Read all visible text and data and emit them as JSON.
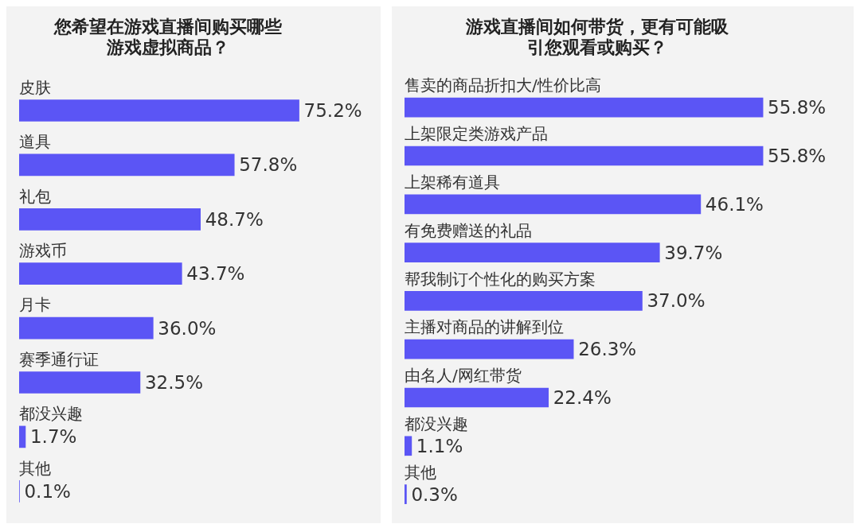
{
  "chart_data": [
    {
      "type": "bar",
      "orientation": "horizontal",
      "title": "您希望在游戏直播间购买哪些游戏虚拟商品？",
      "categories": [
        "皮肤",
        "道具",
        "礼包",
        "游戏币",
        "月卡",
        "赛季通行证",
        "都没兴趣",
        "其他"
      ],
      "values": [
        75.2,
        57.8,
        48.7,
        43.7,
        36.0,
        32.5,
        1.7,
        0.1
      ],
      "value_labels": [
        "75.2%",
        "57.8%",
        "48.7%",
        "43.7%",
        "36.0%",
        "32.5%",
        "1.7%",
        "0.1%"
      ],
      "color": "#5b55f5"
    },
    {
      "type": "bar",
      "orientation": "horizontal",
      "title": "游戏直播间如何带货，更有可能吸引您观看或购买？",
      "categories": [
        "售卖的商品折扣大/性价比高",
        "上架限定类游戏产品",
        "上架稀有道具",
        "有免费赠送的礼品",
        "帮我制订个性化的购买方案",
        "主播对商品的讲解到位",
        "由名人/网红带货",
        "都没兴趣",
        "其他"
      ],
      "values": [
        55.8,
        55.8,
        46.1,
        39.7,
        37.0,
        26.3,
        22.4,
        1.1,
        0.3
      ],
      "value_labels": [
        "55.8%",
        "55.8%",
        "46.1%",
        "39.7%",
        "37.0%",
        "26.3%",
        "22.4%",
        "1.1%",
        "0.3%"
      ],
      "color": "#5b55f5"
    }
  ]
}
